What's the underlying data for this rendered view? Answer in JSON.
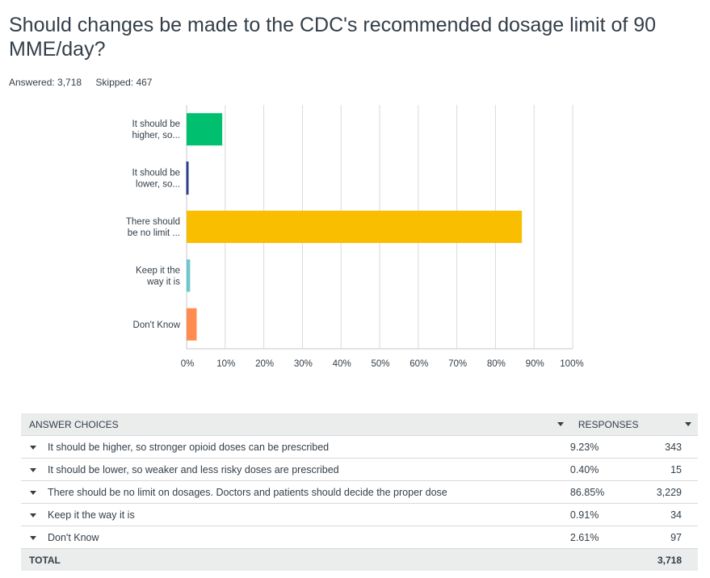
{
  "question": "Should changes be made to the CDC's recommended dosage limit of 90 MME/day?",
  "answered": "Answered: 3,718",
  "skipped": "Skipped: 467",
  "chart_data": {
    "type": "bar",
    "orientation": "horizontal",
    "categories": [
      [
        "It should be",
        "higher, so..."
      ],
      [
        "It should be",
        "lower, so..."
      ],
      [
        "There should",
        "be no limit ..."
      ],
      [
        "Keep it the",
        "way it is"
      ],
      [
        "Don't Know"
      ]
    ],
    "values": [
      9.23,
      0.4,
      86.85,
      0.91,
      2.61
    ],
    "colors": [
      "#00bf6f",
      "#2c3e85",
      "#f9be00",
      "#6bc8cd",
      "#ff8b4f"
    ],
    "xlim": [
      0,
      100
    ],
    "ticks": [
      "0%",
      "10%",
      "20%",
      "30%",
      "40%",
      "50%",
      "60%",
      "70%",
      "80%",
      "90%",
      "100%"
    ],
    "grid": true
  },
  "table": {
    "header": {
      "choices": "ANSWER CHOICES",
      "responses": "RESPONSES"
    },
    "rows": [
      {
        "choice": "It should be higher, so stronger opioid doses can be prescribed",
        "percent": "9.23%",
        "count": "343"
      },
      {
        "choice": "It should be lower, so weaker and less risky doses are prescribed",
        "percent": "0.40%",
        "count": "15"
      },
      {
        "choice": "There should be no limit on dosages. Doctors and patients should decide the proper dose",
        "percent": "86.85%",
        "count": "3,229"
      },
      {
        "choice": "Keep it the way it is",
        "percent": "0.91%",
        "count": "34"
      },
      {
        "choice": "Don't Know",
        "percent": "2.61%",
        "count": "97"
      }
    ],
    "total_label": "TOTAL",
    "total_count": "3,718"
  }
}
